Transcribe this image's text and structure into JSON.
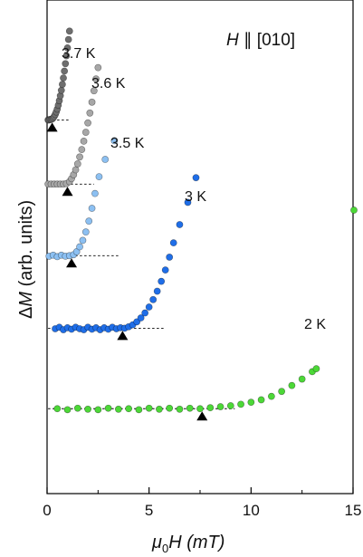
{
  "chart_data": {
    "type": "scatter",
    "annotation": {
      "prefix": "H",
      "suffix": " ∥ [010]"
    },
    "xlabel": {
      "main": "μ",
      "sub": "0",
      "rest": "H (mT)"
    },
    "ylabel": {
      "delta": "Δ",
      "italic": "M",
      "rest": " (arb. units)"
    },
    "xlim": [
      0,
      15
    ],
    "x_ticks": [
      0,
      5,
      10,
      15
    ],
    "x_tick_labels": [
      "0",
      "5",
      "10",
      "15"
    ],
    "ylim": [
      0,
      1
    ],
    "series": [
      {
        "name": "3.7 K",
        "color": "#6e6e6e",
        "baseline": 0.757,
        "marker_x": 0.25,
        "baseline_end_x": 1.1,
        "points": [
          [
            0.05,
            0.757
          ],
          [
            0.1,
            0.757
          ],
          [
            0.15,
            0.758
          ],
          [
            0.2,
            0.758
          ],
          [
            0.25,
            0.759
          ],
          [
            0.3,
            0.761
          ],
          [
            0.35,
            0.764
          ],
          [
            0.4,
            0.768
          ],
          [
            0.45,
            0.773
          ],
          [
            0.5,
            0.779
          ],
          [
            0.55,
            0.787
          ],
          [
            0.6,
            0.796
          ],
          [
            0.65,
            0.806
          ],
          [
            0.7,
            0.817
          ],
          [
            0.75,
            0.829
          ],
          [
            0.8,
            0.842
          ],
          [
            0.85,
            0.856
          ],
          [
            0.9,
            0.871
          ],
          [
            0.95,
            0.887
          ],
          [
            1.0,
            0.903
          ],
          [
            1.05,
            0.92
          ],
          [
            1.1,
            0.937
          ]
        ]
      },
      {
        "name": "3.6 K",
        "color": "#a7a7a7",
        "baseline": 0.627,
        "marker_x": 1.0,
        "baseline_end_x": 2.3,
        "points": [
          [
            0.05,
            0.627
          ],
          [
            0.2,
            0.627
          ],
          [
            0.35,
            0.627
          ],
          [
            0.5,
            0.627
          ],
          [
            0.65,
            0.627
          ],
          [
            0.8,
            0.627
          ],
          [
            0.95,
            0.628
          ],
          [
            1.1,
            0.632
          ],
          [
            1.2,
            0.638
          ],
          [
            1.3,
            0.646
          ],
          [
            1.4,
            0.656
          ],
          [
            1.5,
            0.668
          ],
          [
            1.6,
            0.682
          ],
          [
            1.7,
            0.697
          ],
          [
            1.8,
            0.714
          ],
          [
            1.9,
            0.732
          ],
          [
            2.0,
            0.751
          ],
          [
            2.1,
            0.771
          ],
          [
            2.2,
            0.793
          ],
          [
            2.3,
            0.816
          ],
          [
            2.4,
            0.84
          ],
          [
            2.5,
            0.863
          ]
        ]
      },
      {
        "name": "3.5 K",
        "color": "#8cc0f2",
        "baseline": 0.482,
        "marker_x": 1.2,
        "baseline_end_x": 3.5,
        "points": [
          [
            0.1,
            0.481
          ],
          [
            0.3,
            0.483
          ],
          [
            0.5,
            0.48
          ],
          [
            0.7,
            0.483
          ],
          [
            0.9,
            0.481
          ],
          [
            1.1,
            0.482
          ],
          [
            1.3,
            0.484
          ],
          [
            1.45,
            0.49
          ],
          [
            1.6,
            0.5
          ],
          [
            1.75,
            0.513
          ],
          [
            1.9,
            0.53
          ],
          [
            2.05,
            0.552
          ],
          [
            2.2,
            0.578
          ],
          [
            2.35,
            0.608
          ],
          [
            2.55,
            0.642
          ],
          [
            2.85,
            0.677
          ],
          [
            3.3,
            0.715
          ]
        ]
      },
      {
        "name": "3 K",
        "color": "#1f6ee8",
        "baseline": 0.335,
        "marker_x": 3.7,
        "baseline_end_x": 5.8,
        "points": [
          [
            0.4,
            0.334
          ],
          [
            0.6,
            0.337
          ],
          [
            0.8,
            0.332
          ],
          [
            1.0,
            0.336
          ],
          [
            1.2,
            0.333
          ],
          [
            1.4,
            0.337
          ],
          [
            1.6,
            0.334
          ],
          [
            1.8,
            0.332
          ],
          [
            2.0,
            0.337
          ],
          [
            2.2,
            0.333
          ],
          [
            2.4,
            0.336
          ],
          [
            2.6,
            0.332
          ],
          [
            2.8,
            0.336
          ],
          [
            3.0,
            0.333
          ],
          [
            3.2,
            0.337
          ],
          [
            3.4,
            0.334
          ],
          [
            3.6,
            0.336
          ],
          [
            3.8,
            0.335
          ],
          [
            4.0,
            0.338
          ],
          [
            4.2,
            0.342
          ],
          [
            4.4,
            0.348
          ],
          [
            4.6,
            0.356
          ],
          [
            4.8,
            0.366
          ],
          [
            5.0,
            0.378
          ],
          [
            5.2,
            0.393
          ],
          [
            5.4,
            0.41
          ],
          [
            5.6,
            0.43
          ],
          [
            5.8,
            0.453
          ],
          [
            6.0,
            0.479
          ],
          [
            6.2,
            0.508
          ],
          [
            6.5,
            0.545
          ],
          [
            6.9,
            0.59
          ],
          [
            7.3,
            0.64
          ]
        ]
      },
      {
        "name": "2 K",
        "color": "#4cd837",
        "baseline": 0.172,
        "marker_x": 7.6,
        "baseline_end_x": 9.2,
        "points": [
          [
            0.5,
            0.172
          ],
          [
            1.0,
            0.17
          ],
          [
            1.5,
            0.173
          ],
          [
            2.0,
            0.171
          ],
          [
            2.5,
            0.17
          ],
          [
            3.0,
            0.173
          ],
          [
            3.5,
            0.171
          ],
          [
            4.0,
            0.172
          ],
          [
            4.5,
            0.17
          ],
          [
            5.0,
            0.173
          ],
          [
            5.5,
            0.171
          ],
          [
            6.0,
            0.173
          ],
          [
            6.5,
            0.171
          ],
          [
            7.0,
            0.173
          ],
          [
            7.5,
            0.172
          ],
          [
            8.0,
            0.174
          ],
          [
            8.5,
            0.176
          ],
          [
            9.0,
            0.178
          ],
          [
            9.5,
            0.181
          ],
          [
            10.0,
            0.185
          ],
          [
            10.5,
            0.19
          ],
          [
            11.0,
            0.197
          ],
          [
            11.5,
            0.207
          ],
          [
            12.0,
            0.219
          ],
          [
            12.5,
            0.232
          ],
          [
            13.0,
            0.247
          ],
          [
            13.2,
            0.253
          ]
        ]
      }
    ]
  }
}
